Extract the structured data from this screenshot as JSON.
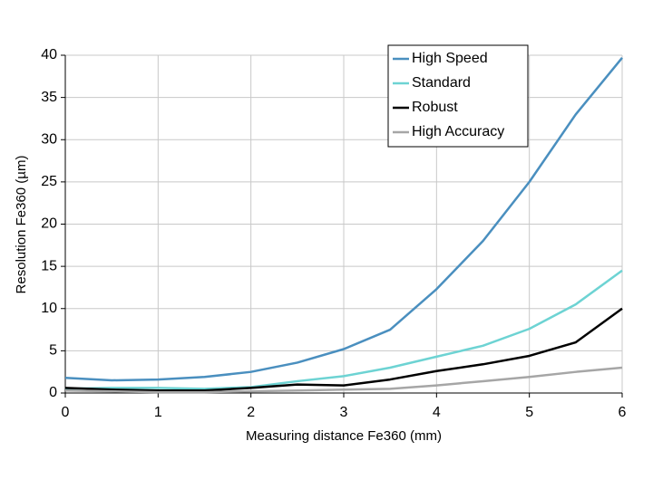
{
  "chart_data": {
    "type": "line",
    "x_label": "Measuring distance Fe360 (mm)",
    "y_label": "Resolution Fe360 (µm)",
    "x": [
      0,
      0.5,
      1,
      1.5,
      2,
      2.5,
      3,
      3.5,
      4,
      4.5,
      5,
      5.5,
      6
    ],
    "series": [
      {
        "name": "High Speed",
        "color": "#4a8fbf",
        "values": [
          1.8,
          1.5,
          1.6,
          1.9,
          2.5,
          3.6,
          5.2,
          7.5,
          12.3,
          18,
          25,
          33,
          39.7
        ]
      },
      {
        "name": "Standard",
        "color": "#6dd3d3",
        "values": [
          0.5,
          0.6,
          0.6,
          0.5,
          0.7,
          1.4,
          2.0,
          3.0,
          4.3,
          5.6,
          7.6,
          10.5,
          14.5
        ]
      },
      {
        "name": "Robust",
        "color": "#000000",
        "values": [
          0.6,
          0.4,
          0.3,
          0.3,
          0.6,
          1.0,
          0.9,
          1.6,
          2.6,
          3.4,
          4.4,
          6.0,
          10.0
        ]
      },
      {
        "name": "High Accuracy",
        "color": "#a6a6a6",
        "values": [
          0.3,
          0.2,
          0.1,
          0.1,
          0.2,
          0.3,
          0.4,
          0.5,
          0.9,
          1.4,
          1.9,
          2.5,
          3.0
        ]
      }
    ],
    "xlim": [
      0,
      6
    ],
    "xticks": [
      0,
      1,
      2,
      3,
      4,
      5,
      6
    ],
    "ylim": [
      0,
      40
    ],
    "yticks": [
      0,
      5,
      10,
      15,
      20,
      25,
      30,
      35,
      40
    ],
    "grid": true,
    "legend": "upper right"
  }
}
